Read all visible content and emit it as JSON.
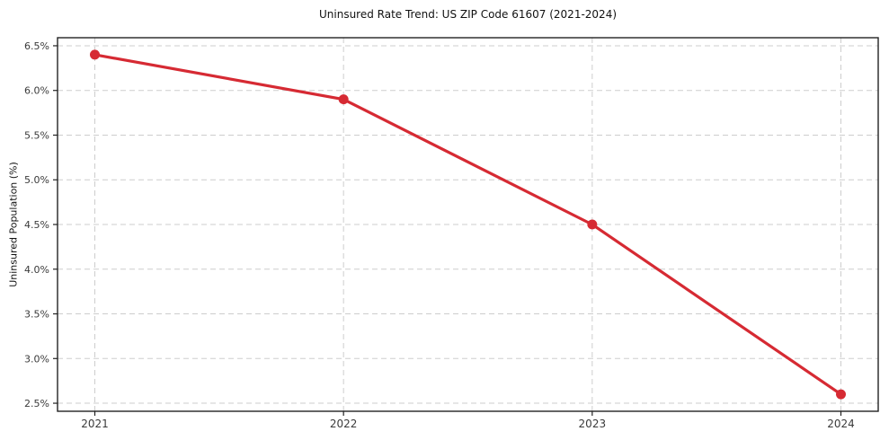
{
  "chart_data": {
    "type": "line",
    "title": "Uninsured Rate Trend: US ZIP Code 61607 (2021-2024)",
    "xlabel": "",
    "ylabel": "Uninsured Population (%)",
    "x": [
      2021,
      2022,
      2023,
      2024
    ],
    "series": [
      {
        "name": "uninsured-rate",
        "values": [
          6.4,
          5.9,
          4.5,
          2.6
        ],
        "color": "#d62a33",
        "marker": "circle",
        "line_width": 3.2,
        "marker_radius": 5.5
      }
    ],
    "xtick_values": [
      2021,
      2022,
      2023,
      2024
    ],
    "xtick_labels": [
      "2021",
      "2022",
      "2023",
      "2024"
    ],
    "ytick_values": [
      2.5,
      3.0,
      3.5,
      4.0,
      4.5,
      5.0,
      5.5,
      6.0,
      6.5
    ],
    "ytick_labels": [
      "2.5%",
      "3.0%",
      "3.5%",
      "4.0%",
      "4.5%",
      "5.0%",
      "5.5%",
      "6.0%",
      "6.5%"
    ],
    "xlim": [
      2020.85,
      2024.15
    ],
    "ylim": [
      2.41,
      6.59
    ],
    "grid": true,
    "grid_style": "dashed",
    "legend": false,
    "colors": {
      "line": "#d62a33",
      "grid": "#cdcdcd",
      "spine": "#222222",
      "tick_label": "#3a3a3a",
      "title": "#111111"
    }
  }
}
